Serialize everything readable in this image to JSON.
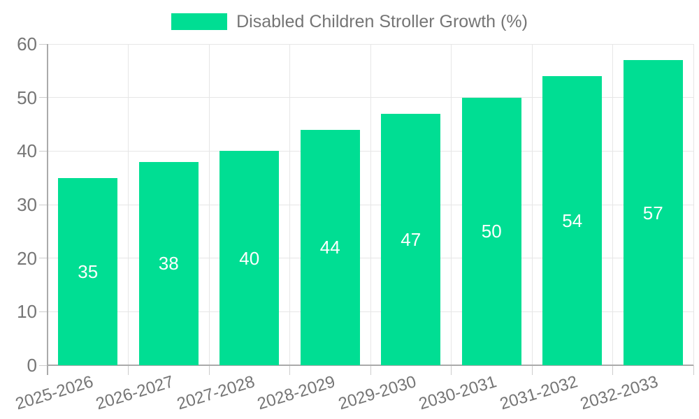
{
  "chart_data": {
    "type": "bar",
    "title": "Disabled Children Stroller Growth (%)",
    "legend": "Disabled Children Stroller Growth (%)",
    "legend_position": "top",
    "categories": [
      "2025-2026",
      "2026-2027",
      "2027-2028",
      "2028-2029",
      "2029-2030",
      "2030-2031",
      "2031-2032",
      "2032-2033"
    ],
    "values": [
      35,
      38,
      40,
      44,
      47,
      50,
      54,
      57
    ],
    "xlabel": "",
    "ylabel": "",
    "ylim": [
      0,
      60
    ],
    "y_ticks": [
      0,
      10,
      20,
      30,
      40,
      50,
      60
    ],
    "grid": true,
    "x_label_rotation_deg": -17,
    "colors": {
      "bar": "#00de93",
      "axis": "#aaaaaa",
      "grid": "#e6e6e6",
      "tick": "#cccccc",
      "text": "#757575",
      "value_text": "#ffffff"
    }
  }
}
